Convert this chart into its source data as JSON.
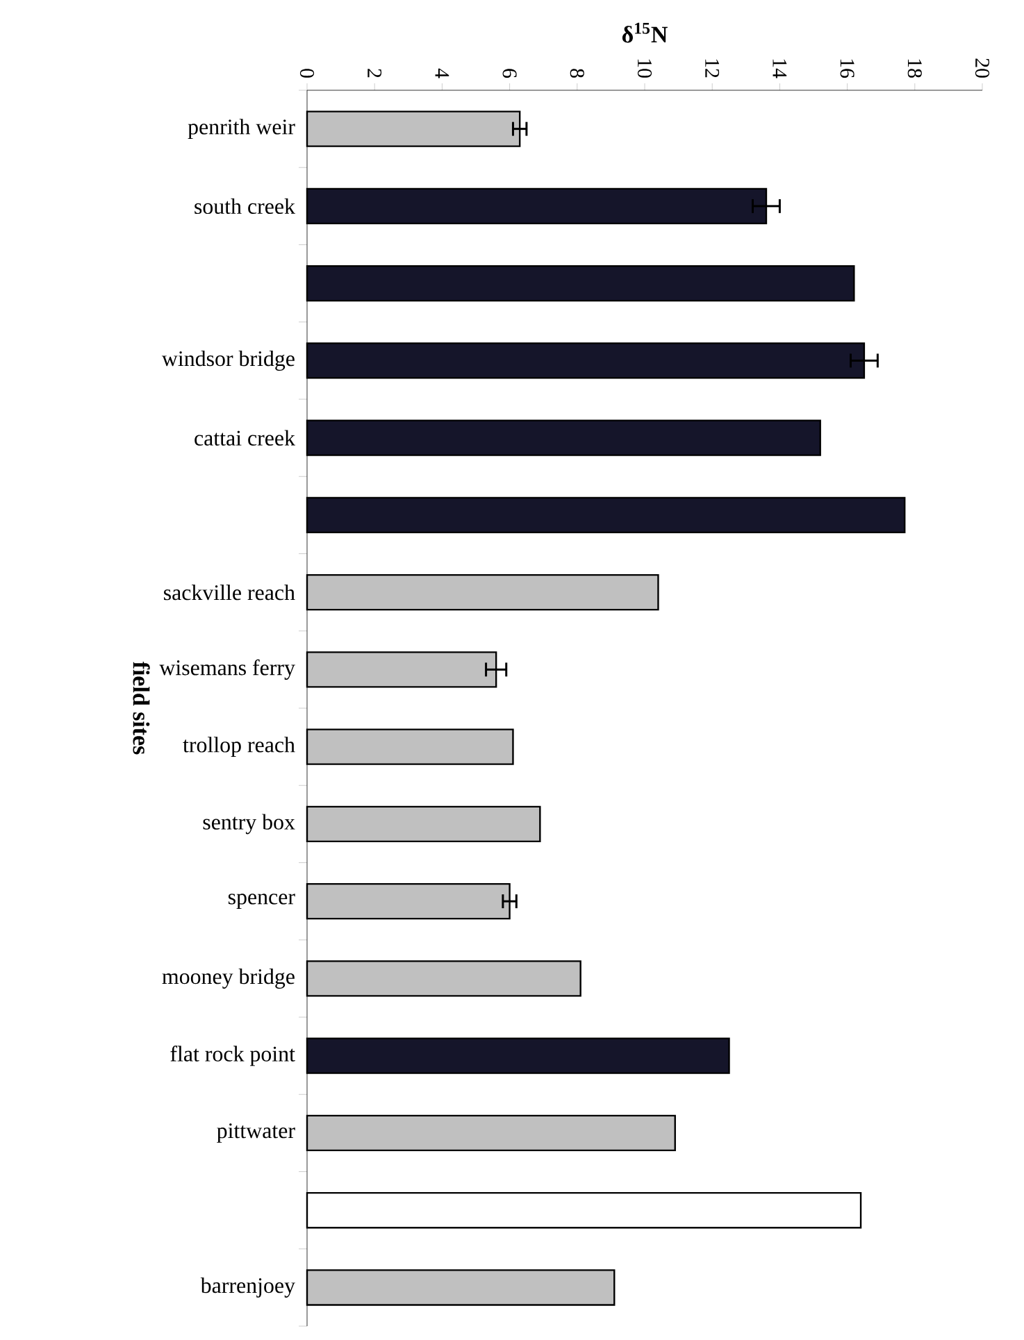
{
  "chart_data": {
    "type": "bar",
    "orientation": "horizontal",
    "xlabel": "δ$^{15}$N",
    "ylabel": "field sites",
    "categories": [
      "penrith weir",
      "south creek",
      null,
      "windsor bridge",
      "cattai creek",
      null,
      "sackville reach",
      "wisemans ferry",
      "trollop reach",
      "sentry box",
      "spencer",
      "mooney bridge",
      "flat rock point",
      "pittwater",
      null,
      "barrenjoey"
    ],
    "values": [
      6.3,
      13.6,
      16.2,
      16.5,
      15.2,
      17.7,
      10.4,
      5.6,
      6.1,
      6.9,
      6.0,
      8.1,
      12.5,
      10.9,
      16.4,
      9.1
    ],
    "errors": [
      0.2,
      0.4,
      null,
      0.4,
      null,
      null,
      null,
      0.3,
      null,
      null,
      0.2,
      null,
      null,
      null,
      null,
      null
    ],
    "colors": [
      "#c0c0c0",
      "#15152a",
      "#15152a",
      "#15152a",
      "#15152a",
      "#15152a",
      "#c0c0c0",
      "#c0c0c0",
      "#c0c0c0",
      "#c0c0c0",
      "#c0c0c0",
      "#c0c0c0",
      "#15152a",
      "#c0c0c0",
      "#ffffff",
      "#c0c0c0"
    ],
    "xlim": [
      0,
      20
    ],
    "xticks": [
      0,
      2,
      4,
      6,
      8,
      10,
      12,
      14,
      16,
      18,
      20
    ],
    "grid": false
  }
}
